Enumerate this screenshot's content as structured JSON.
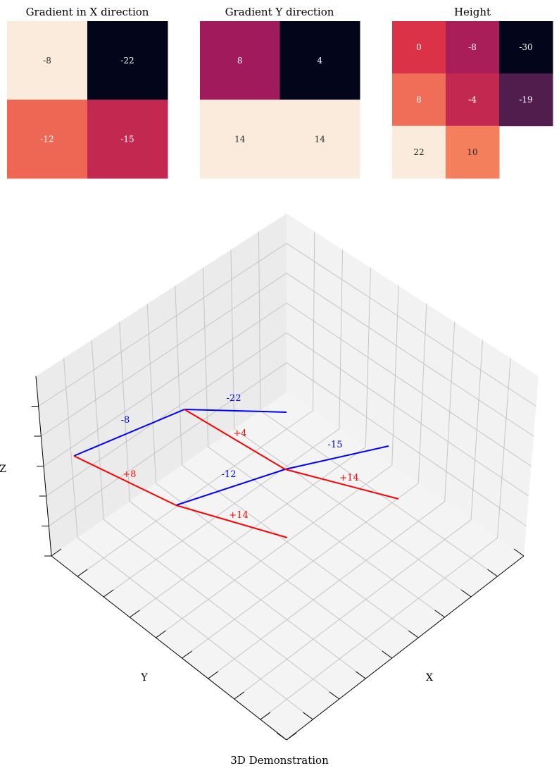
{
  "chart_data": [
    {
      "type": "heatmap",
      "title": "Gradient in X direction",
      "rows": 2,
      "cols": 2,
      "values": [
        [
          -8,
          -22
        ],
        [
          -12,
          -15
        ]
      ],
      "labels": [
        [
          "-8",
          "-22"
        ],
        [
          "-12",
          "-15"
        ]
      ]
    },
    {
      "type": "heatmap",
      "title": "Gradient Y direction",
      "rows": 2,
      "cols": 2,
      "values": [
        [
          8,
          4
        ],
        [
          14,
          14
        ]
      ],
      "labels": [
        [
          "8",
          "4"
        ],
        [
          "14",
          "14"
        ]
      ]
    },
    {
      "type": "heatmap",
      "title": "Height",
      "rows": 3,
      "cols": 3,
      "values": [
        [
          0,
          -8,
          -30
        ],
        [
          8,
          -4,
          -19
        ],
        [
          22,
          10,
          null
        ]
      ],
      "labels": [
        [
          "0",
          "-8",
          "-30"
        ],
        [
          "8",
          "-4",
          "-19"
        ],
        [
          "22",
          "10",
          ""
        ]
      ]
    },
    {
      "type": "line",
      "title": "3D Demonstration",
      "xlabel": "X",
      "ylabel": "Y",
      "zlabel": "Z",
      "x_segments": [
        {
          "label": "-8",
          "color": "#0000ff"
        },
        {
          "label": "-22",
          "color": "#0000ff"
        },
        {
          "label": "-12",
          "color": "#0000ff"
        },
        {
          "label": "-15",
          "color": "#0000ff"
        }
      ],
      "y_segments": [
        {
          "label": "+8",
          "color": "#ff0000"
        },
        {
          "label": "+4",
          "color": "#ff0000"
        },
        {
          "label": "+14",
          "color": "#ff0000"
        },
        {
          "label": "+14",
          "color": "#ff0000"
        }
      ]
    }
  ]
}
